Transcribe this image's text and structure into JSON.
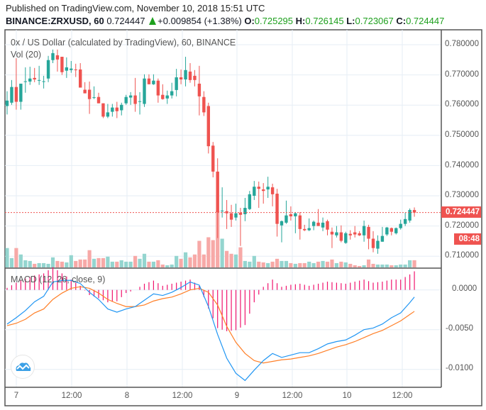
{
  "header": {
    "published": "Published on TradingView.com, November 10, 2018 15:51 UTC",
    "symbol": "BINANCE:ZRXUSD, 60",
    "last": "0.724447",
    "change": "+0.009854 (+1.38%)",
    "o_label": "O:",
    "o": "0.725295",
    "h_label": "H:",
    "h": "0.726145",
    "l_label": "L:",
    "l": "0.723067",
    "c_label": "C:",
    "c": "0.724447",
    "up_icon": "triangle-up-icon"
  },
  "legend": {
    "title": "0x / US Dollar (calculated by TradingView), 60, BINANCE",
    "volume": "Vol (20)",
    "macd": "MACD (12, 26, close, 9)"
  },
  "price_axis": [
    "0.780000",
    "0.770000",
    "0.760000",
    "0.750000",
    "0.740000",
    "0.730000",
    "0.720000",
    "0.710000"
  ],
  "last_price_label": "0.724447",
  "countdown_label": "08:48",
  "macd_axis": [
    "0.0000",
    "-0.0050",
    "-0.0100"
  ],
  "time_axis": [
    "7",
    "12:00",
    "8",
    "12:00",
    "9",
    "12:00",
    "10",
    "12:00"
  ],
  "colors": {
    "up": "#26a69a",
    "down": "#ef5350",
    "vol_up": "#94d5cf",
    "vol_down": "#f7a9a7",
    "macd": "#2196f3",
    "signal": "#ff7f27",
    "histogram": "#f0146e",
    "grid": "#e6eef5"
  },
  "chart_data": {
    "type": "candlestick",
    "symbol": "BINANCE:ZRXUSD",
    "interval": "60",
    "ylim": [
      0.7055,
      0.7845
    ],
    "grid": true,
    "candle_fields": [
      "time",
      "open",
      "high",
      "low",
      "close",
      "volume_relative"
    ],
    "candles": [
      [
        "2018-11-06 22:00",
        0.7597,
        0.7646,
        0.7569,
        0.7615,
        27
      ],
      [
        "2018-11-06 23:00",
        0.7608,
        0.7683,
        0.7601,
        0.766,
        13
      ],
      [
        "2018-11-07 00:00",
        0.766,
        0.7755,
        0.7585,
        0.7611,
        27
      ],
      [
        "2018-11-07 01:00",
        0.7611,
        0.7671,
        0.7585,
        0.7671,
        18
      ],
      [
        "2018-11-07 02:00",
        0.7678,
        0.7725,
        0.7641,
        0.7679,
        10
      ],
      [
        "2018-11-07 03:00",
        0.7678,
        0.7727,
        0.7667,
        0.7688,
        9
      ],
      [
        "2018-11-07 04:00",
        0.769,
        0.7723,
        0.7676,
        0.7685,
        5
      ],
      [
        "2018-11-07 05:00",
        0.7681,
        0.773,
        0.7667,
        0.7683,
        6
      ],
      [
        "2018-11-07 06:00",
        0.7678,
        0.7697,
        0.7655,
        0.7679,
        6
      ],
      [
        "2018-11-07 07:00",
        0.7688,
        0.7763,
        0.7676,
        0.7749,
        5
      ],
      [
        "2018-11-07 08:00",
        0.7749,
        0.7784,
        0.7739,
        0.7772,
        14
      ],
      [
        "2018-11-07 09:00",
        0.7765,
        0.7784,
        0.7711,
        0.7751,
        9
      ],
      [
        "2018-11-07 10:00",
        0.776,
        0.776,
        0.77,
        0.7709,
        8
      ],
      [
        "2018-11-07 11:00",
        0.7714,
        0.7758,
        0.769,
        0.7725,
        7
      ],
      [
        "2018-11-07 12:00",
        0.7716,
        0.7746,
        0.7707,
        0.7721,
        17
      ],
      [
        "2018-11-07 13:00",
        0.7718,
        0.7737,
        0.7693,
        0.7716,
        9
      ],
      [
        "2018-11-07 14:00",
        0.7718,
        0.7739,
        0.7658,
        0.7658,
        11
      ],
      [
        "2018-11-07 15:00",
        0.7651,
        0.7676,
        0.7639,
        0.7639,
        11
      ],
      [
        "2018-11-07 16:00",
        0.7651,
        0.7678,
        0.7571,
        0.762,
        24
      ],
      [
        "2018-11-07 17:00",
        0.7625,
        0.7662,
        0.762,
        0.7626,
        12
      ],
      [
        "2018-11-07 18:00",
        0.7627,
        0.7641,
        0.7606,
        0.7606,
        13
      ],
      [
        "2018-11-07 19:00",
        0.7606,
        0.7606,
        0.7557,
        0.7562,
        13
      ],
      [
        "2018-11-07 20:00",
        0.7562,
        0.7604,
        0.7557,
        0.7576,
        15
      ],
      [
        "2018-11-07 21:00",
        0.7578,
        0.7604,
        0.7562,
        0.7592,
        8
      ],
      [
        "2018-11-07 22:00",
        0.7592,
        0.7611,
        0.7557,
        0.758,
        8
      ],
      [
        "2018-11-07 23:00",
        0.7583,
        0.7608,
        0.7566,
        0.7601,
        10
      ],
      [
        "2018-11-08 00:00",
        0.7606,
        0.7634,
        0.7601,
        0.7627,
        8
      ],
      [
        "2018-11-08 01:00",
        0.7625,
        0.7643,
        0.7601,
        0.7632,
        8
      ],
      [
        "2018-11-08 02:00",
        0.7632,
        0.769,
        0.7578,
        0.7604,
        16
      ],
      [
        "2018-11-08 03:00",
        0.7611,
        0.7643,
        0.7569,
        0.7613,
        12
      ],
      [
        "2018-11-08 04:00",
        0.7604,
        0.7702,
        0.7594,
        0.7688,
        19
      ],
      [
        "2018-11-08 05:00",
        0.7688,
        0.7702,
        0.7669,
        0.7669,
        8
      ],
      [
        "2018-11-08 06:00",
        0.7669,
        0.7702,
        0.7667,
        0.7681,
        8
      ],
      [
        "2018-11-08 07:00",
        0.7681,
        0.7688,
        0.7608,
        0.7632,
        10
      ],
      [
        "2018-11-08 08:00",
        0.7634,
        0.7669,
        0.7618,
        0.762,
        4
      ],
      [
        "2018-11-08 09:00",
        0.7622,
        0.7648,
        0.7604,
        0.7632,
        3
      ],
      [
        "2018-11-08 10:00",
        0.7632,
        0.7674,
        0.7622,
        0.7646,
        4
      ],
      [
        "2018-11-08 11:00",
        0.765,
        0.772,
        0.7629,
        0.7692,
        16
      ],
      [
        "2018-11-08 12:00",
        0.7692,
        0.7718,
        0.7669,
        0.7685,
        12
      ],
      [
        "2018-11-08 13:00",
        0.7685,
        0.776,
        0.7662,
        0.7716,
        21
      ],
      [
        "2018-11-08 14:00",
        0.7711,
        0.7739,
        0.7674,
        0.7683,
        14
      ],
      [
        "2018-11-08 15:00",
        0.7697,
        0.7716,
        0.7662,
        0.7683,
        18
      ],
      [
        "2018-11-08 16:00",
        0.7671,
        0.773,
        0.7566,
        0.7629,
        37
      ],
      [
        "2018-11-08 17:00",
        0.7627,
        0.7646,
        0.7564,
        0.7576,
        18
      ],
      [
        "2018-11-08 18:00",
        0.7597,
        0.7608,
        0.744,
        0.7464,
        42
      ],
      [
        "2018-11-08 19:00",
        0.7466,
        0.7478,
        0.7361,
        0.738,
        38
      ],
      [
        "2018-11-08 20:00",
        0.738,
        0.7424,
        0.716,
        0.7246,
        79
      ],
      [
        "2018-11-08 21:00",
        0.7249,
        0.7328,
        0.7228,
        0.7251,
        40
      ],
      [
        "2018-11-08 22:00",
        0.7249,
        0.7286,
        0.719,
        0.7242,
        23
      ],
      [
        "2018-11-08 23:00",
        0.7242,
        0.727,
        0.7197,
        0.7221,
        19
      ],
      [
        "2018-11-09 00:00",
        0.7228,
        0.7274,
        0.7218,
        0.7242,
        18
      ],
      [
        "2018-11-09 01:00",
        0.7244,
        0.726,
        0.7134,
        0.7237,
        28
      ],
      [
        "2018-11-09 02:00",
        0.7239,
        0.7293,
        0.7216,
        0.726,
        9
      ],
      [
        "2018-11-09 03:00",
        0.7256,
        0.7316,
        0.7253,
        0.7305,
        8
      ],
      [
        "2018-11-09 04:00",
        0.73,
        0.7349,
        0.7286,
        0.733,
        16
      ],
      [
        "2018-11-09 05:00",
        0.733,
        0.7347,
        0.726,
        0.7323,
        8
      ],
      [
        "2018-11-09 06:00",
        0.7321,
        0.7342,
        0.7274,
        0.7316,
        7
      ],
      [
        "2018-11-09 07:00",
        0.7321,
        0.7363,
        0.7293,
        0.733,
        6
      ],
      [
        "2018-11-09 08:00",
        0.7328,
        0.734,
        0.7265,
        0.7305,
        8
      ],
      [
        "2018-11-09 09:00",
        0.7307,
        0.7323,
        0.7165,
        0.7207,
        12
      ],
      [
        "2018-11-09 10:00",
        0.7202,
        0.7218,
        0.7146,
        0.7216,
        9
      ],
      [
        "2018-11-09 11:00",
        0.7211,
        0.7284,
        0.7207,
        0.7235,
        9
      ],
      [
        "2018-11-09 12:00",
        0.7239,
        0.7265,
        0.7218,
        0.7232,
        6
      ],
      [
        "2018-11-09 13:00",
        0.7232,
        0.7246,
        0.7176,
        0.7242,
        5
      ],
      [
        "2018-11-09 14:00",
        0.7235,
        0.7246,
        0.7155,
        0.719,
        6
      ],
      [
        "2018-11-09 15:00",
        0.719,
        0.7204,
        0.7183,
        0.7186,
        6
      ],
      [
        "2018-11-09 16:00",
        0.7186,
        0.7225,
        0.7183,
        0.7193,
        8
      ],
      [
        "2018-11-09 17:00",
        0.72,
        0.7218,
        0.7186,
        0.7214,
        6
      ],
      [
        "2018-11-09 18:00",
        0.7211,
        0.7256,
        0.72,
        0.72,
        8
      ],
      [
        "2018-11-09 19:00",
        0.7195,
        0.7228,
        0.7183,
        0.7211,
        9
      ],
      [
        "2018-11-09 20:00",
        0.7216,
        0.7221,
        0.7169,
        0.7188,
        8
      ],
      [
        "2018-11-09 21:00",
        0.7181,
        0.7195,
        0.7127,
        0.7172,
        11
      ],
      [
        "2018-11-09 22:00",
        0.7169,
        0.72,
        0.7162,
        0.7179,
        6
      ],
      [
        "2018-11-09 23:00",
        0.7179,
        0.7202,
        0.7146,
        0.7151,
        8
      ],
      [
        "2018-11-10 00:00",
        0.7144,
        0.7181,
        0.7141,
        0.7176,
        7
      ],
      [
        "2018-11-10 01:00",
        0.7174,
        0.7186,
        0.7155,
        0.7169,
        5
      ],
      [
        "2018-11-10 02:00",
        0.7179,
        0.72,
        0.7162,
        0.7172,
        3
      ],
      [
        "2018-11-10 03:00",
        0.7176,
        0.7183,
        0.7167,
        0.7169,
        2
      ],
      [
        "2018-11-10 04:00",
        0.7169,
        0.7218,
        0.7148,
        0.72,
        3
      ],
      [
        "2018-11-10 05:00",
        0.7197,
        0.7204,
        0.7123,
        0.7158,
        11
      ],
      [
        "2018-11-10 06:00",
        0.7158,
        0.7183,
        0.7113,
        0.7127,
        5
      ],
      [
        "2018-11-10 07:00",
        0.7125,
        0.7169,
        0.7108,
        0.7151,
        4
      ],
      [
        "2018-11-10 08:00",
        0.7148,
        0.7197,
        0.7148,
        0.7167,
        4
      ],
      [
        "2018-11-10 09:00",
        0.7172,
        0.7197,
        0.7167,
        0.7195,
        4
      ],
      [
        "2018-11-10 10:00",
        0.7193,
        0.7195,
        0.7169,
        0.7181,
        3
      ],
      [
        "2018-11-10 11:00",
        0.7176,
        0.7195,
        0.7172,
        0.7193,
        3
      ],
      [
        "2018-11-10 12:00",
        0.7193,
        0.7221,
        0.7188,
        0.7207,
        4
      ],
      [
        "2018-11-10 13:00",
        0.7207,
        0.7244,
        0.72,
        0.7223,
        4
      ],
      [
        "2018-11-10 14:00",
        0.7218,
        0.7258,
        0.7211,
        0.7253,
        10
      ],
      [
        "2018-11-10 15:00",
        0.725295,
        0.726145,
        0.723067,
        0.724447,
        10
      ]
    ],
    "macd_panel": {
      "ylim": [
        -0.0125,
        0.0025
      ],
      "times": [
        "2018-11-06 22:00",
        "2018-11-07 00:00",
        "2018-11-07 02:00",
        "2018-11-07 04:00",
        "2018-11-07 06:00",
        "2018-11-07 08:00",
        "2018-11-07 10:00",
        "2018-11-07 12:00",
        "2018-11-07 14:00",
        "2018-11-07 16:00",
        "2018-11-07 18:00",
        "2018-11-07 20:00",
        "2018-11-07 22:00",
        "2018-11-08 00:00",
        "2018-11-08 02:00",
        "2018-11-08 04:00",
        "2018-11-08 06:00",
        "2018-11-08 08:00",
        "2018-11-08 10:00",
        "2018-11-08 12:00",
        "2018-11-08 14:00",
        "2018-11-08 16:00",
        "2018-11-08 18:00",
        "2018-11-08 20:00",
        "2018-11-08 22:00",
        "2018-11-09 00:00",
        "2018-11-09 02:00",
        "2018-11-09 04:00",
        "2018-11-09 06:00",
        "2018-11-09 08:00",
        "2018-11-09 10:00",
        "2018-11-09 12:00",
        "2018-11-09 14:00",
        "2018-11-09 16:00",
        "2018-11-09 18:00",
        "2018-11-09 20:00",
        "2018-11-09 22:00",
        "2018-11-10 00:00",
        "2018-11-10 02:00",
        "2018-11-10 04:00",
        "2018-11-10 06:00",
        "2018-11-10 08:00",
        "2018-11-10 10:00",
        "2018-11-10 12:00",
        "2018-11-10 14:00",
        "2018-11-10 15:00"
      ],
      "macd": [
        -0.0043,
        -0.0035,
        -0.0026,
        -0.0015,
        -0.0008,
        0.001,
        0.0012,
        0.0012,
        0.0008,
        -0.0003,
        -0.0012,
        -0.0024,
        -0.0028,
        -0.0024,
        -0.0021,
        -0.0013,
        -0.0005,
        -0.0007,
        -0.0003,
        0.0003,
        0.001,
        0.0006,
        -0.0021,
        -0.0056,
        -0.0086,
        -0.0105,
        -0.0114,
        -0.0101,
        -0.0089,
        -0.008,
        -0.0085,
        -0.0082,
        -0.0079,
        -0.0079,
        -0.0074,
        -0.0068,
        -0.0065,
        -0.0063,
        -0.0057,
        -0.005,
        -0.0048,
        -0.0043,
        -0.0035,
        -0.0029,
        -0.0016,
        -0.0009
      ],
      "signal": [
        -0.0045,
        -0.0042,
        -0.0037,
        -0.0029,
        -0.0024,
        -0.0012,
        -0.0004,
        0.0002,
        0.0004,
        0.0002,
        -0.0004,
        -0.0012,
        -0.0017,
        -0.0021,
        -0.0021,
        -0.0019,
        -0.0014,
        -0.0011,
        -0.0009,
        -0.0005,
        0.0,
        0.0002,
        -0.0003,
        -0.0019,
        -0.0046,
        -0.0066,
        -0.008,
        -0.0089,
        -0.0092,
        -0.009,
        -0.0088,
        -0.0087,
        -0.0085,
        -0.0083,
        -0.008,
        -0.0076,
        -0.0072,
        -0.0069,
        -0.0065,
        -0.006,
        -0.0055,
        -0.0051,
        -0.0045,
        -0.0039,
        -0.0031,
        -0.0027
      ]
    }
  }
}
